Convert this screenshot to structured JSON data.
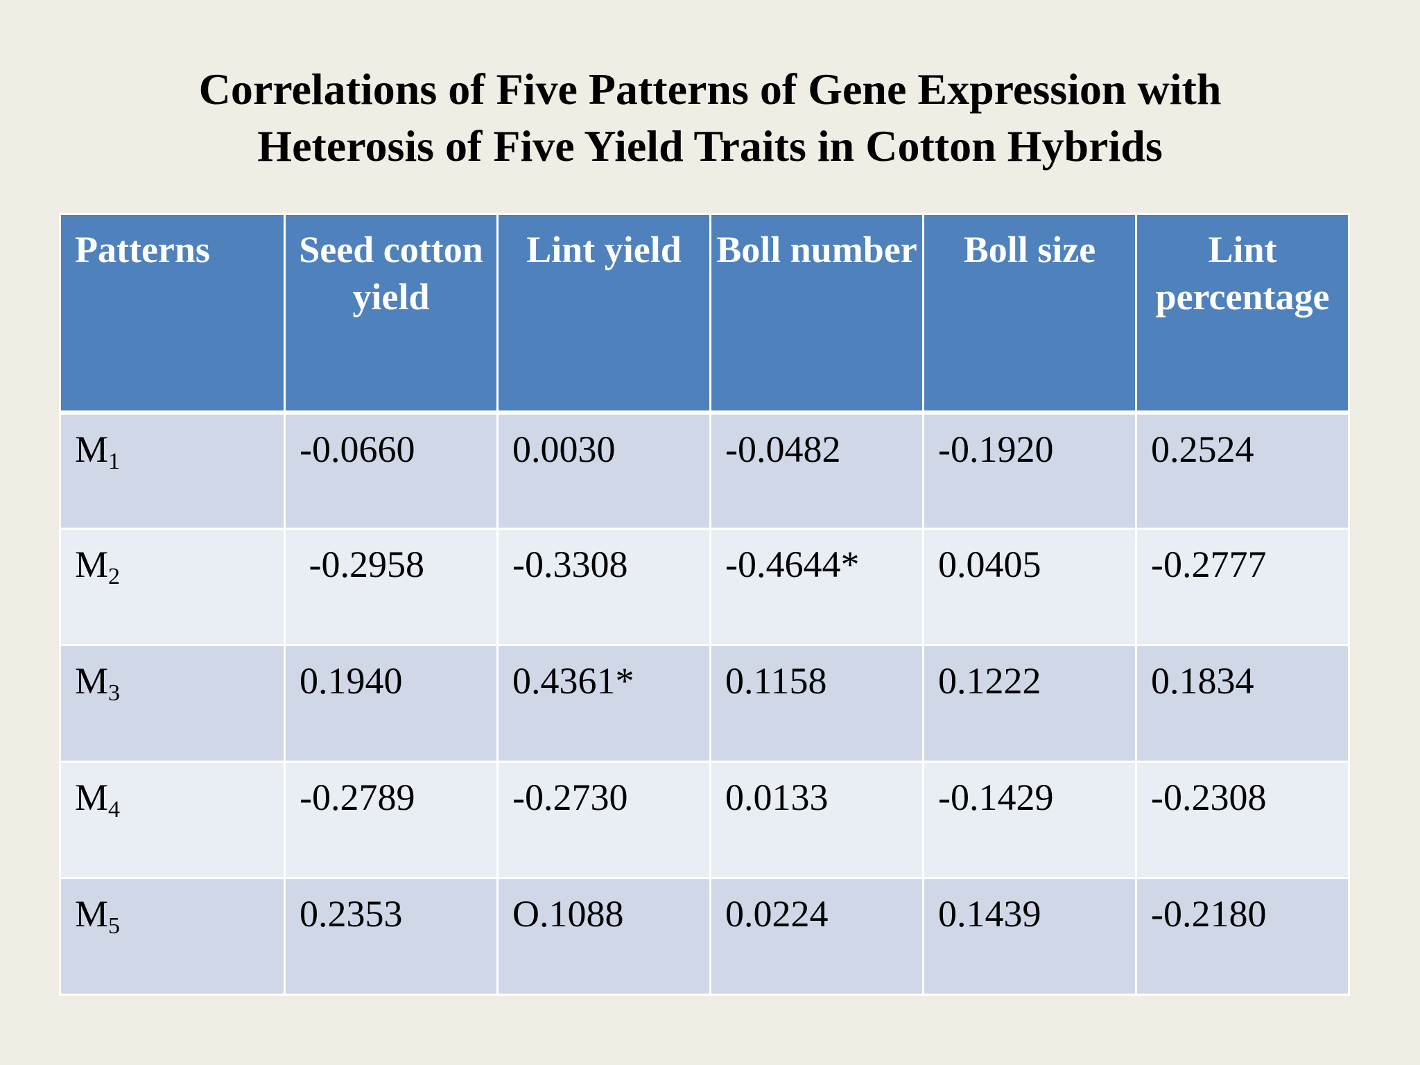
{
  "title": {
    "line1": "Correlations of Five Patterns of Gene Expression with",
    "line2": "Heterosis of Five Yield Traits in Cotton Hybrids"
  },
  "table": {
    "headers": [
      "Patterns",
      "Seed cotton yield",
      "Lint yield",
      "Boll number",
      "Boll size",
      "Lint percentage"
    ],
    "rows": [
      {
        "pattern": "M",
        "sub": "1",
        "values": [
          "-0.0660",
          "0.0030",
          "-0.0482",
          "-0.1920",
          "0.2524"
        ]
      },
      {
        "pattern": "M",
        "sub": "2",
        "values": [
          " -0.2958",
          "-0.3308",
          "-0.4644*",
          "0.0405",
          "-0.2777"
        ]
      },
      {
        "pattern": "M",
        "sub": "3",
        "values": [
          "0.1940",
          "0.4361*",
          "0.1158",
          "0.1222",
          "0.1834"
        ]
      },
      {
        "pattern": "M",
        "sub": "4",
        "values": [
          "-0.2789",
          "-0.2730",
          "0.0133",
          "-0.1429",
          "-0.2308"
        ]
      },
      {
        "pattern": "M",
        "sub": "5",
        "values": [
          "0.2353",
          "O.1088",
          "0.0224",
          "0.1439",
          "-0.2180"
        ]
      }
    ]
  },
  "colors": {
    "background": "#efede4",
    "header": "#4f81bd",
    "row_odd": "#d0d8e8",
    "row_even": "#e9edf4"
  }
}
